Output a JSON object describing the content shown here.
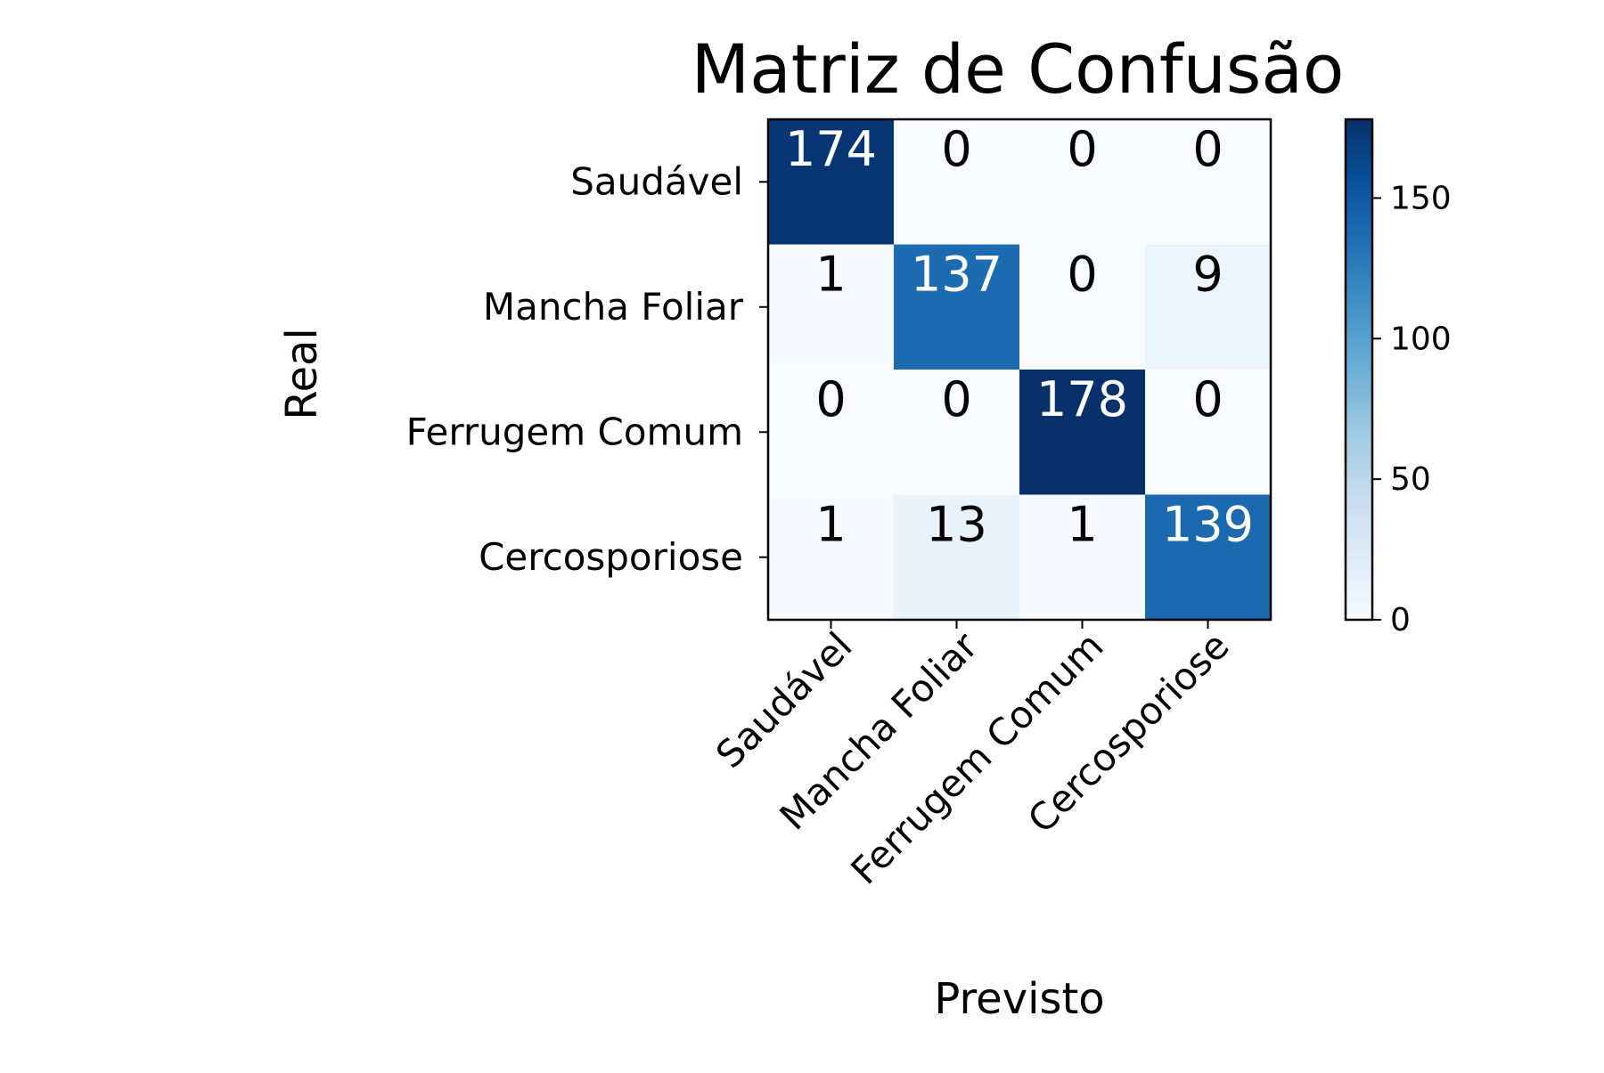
{
  "chart_data": {
    "type": "heatmap",
    "title": "Matriz de Confusão",
    "xlabel": "Previsto",
    "ylabel": "Real",
    "classes": [
      "Saudável",
      "Mancha Foliar",
      "Ferrugem Comum",
      "Cercosporiose"
    ],
    "matrix": [
      [
        174,
        0,
        0,
        0
      ],
      [
        1,
        137,
        0,
        9
      ],
      [
        0,
        0,
        178,
        0
      ],
      [
        1,
        13,
        1,
        139
      ]
    ],
    "colormap": "Blues",
    "value_range": [
      0,
      178
    ],
    "colorbar_ticks": [
      0,
      50,
      100,
      150
    ],
    "grid": false,
    "legend": "none"
  }
}
